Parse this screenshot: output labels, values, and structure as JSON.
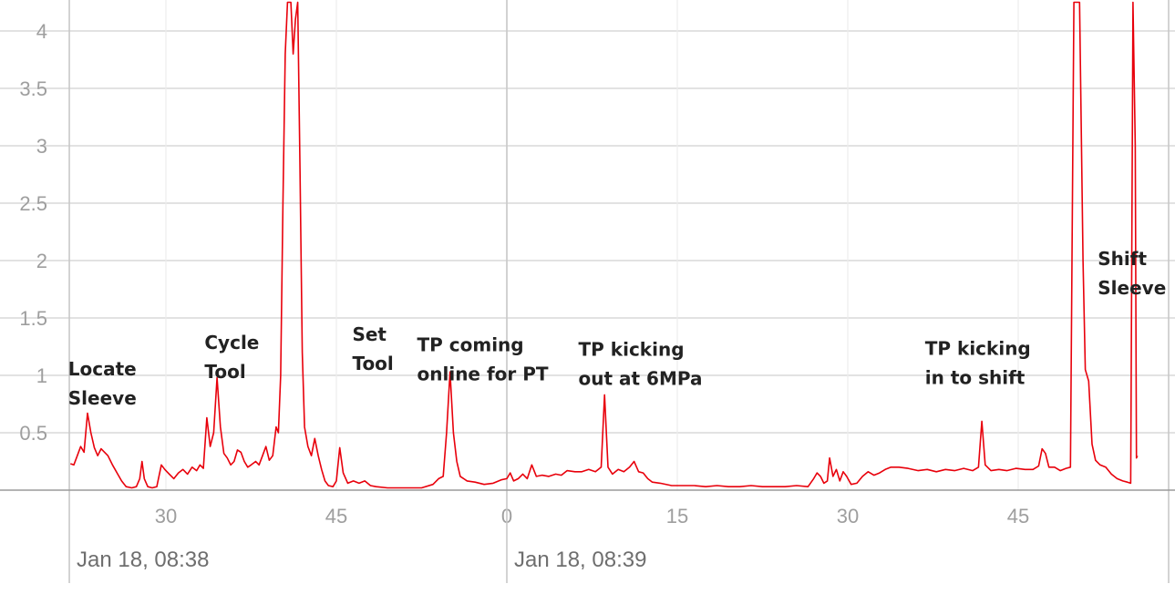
{
  "chart_data": {
    "type": "line",
    "title": "",
    "xlabel": "",
    "ylabel": "",
    "grid": true,
    "ylim": [
      0,
      4.25
    ],
    "xlim": [
      21.5,
      115.5
    ],
    "x_unit": "seconds",
    "y_ticks": [
      "0.5",
      "1",
      "1.5",
      "2",
      "2.5",
      "3",
      "3.5",
      "4"
    ],
    "x_ticks": [
      {
        "x": 30,
        "label": "30"
      },
      {
        "x": 45,
        "label": "45"
      },
      {
        "x": 60,
        "label": "0"
      },
      {
        "x": 75,
        "label": "15"
      },
      {
        "x": 90,
        "label": "30"
      },
      {
        "x": 105,
        "label": "45"
      }
    ],
    "date_labels": [
      {
        "x": 21.5,
        "label": "Jan 18, 08:38"
      },
      {
        "x": 60,
        "label": "Jan 18, 08:39"
      }
    ],
    "series": [
      {
        "color": "#e8000b",
        "points": [
          [
            21.6,
            0.23
          ],
          [
            21.9,
            0.22
          ],
          [
            22.2,
            0.3
          ],
          [
            22.5,
            0.38
          ],
          [
            22.8,
            0.33
          ],
          [
            23.1,
            0.67
          ],
          [
            23.4,
            0.5
          ],
          [
            23.7,
            0.37
          ],
          [
            24.0,
            0.3
          ],
          [
            24.3,
            0.36
          ],
          [
            24.6,
            0.33
          ],
          [
            24.9,
            0.3
          ],
          [
            25.3,
            0.22
          ],
          [
            25.7,
            0.15
          ],
          [
            26.1,
            0.08
          ],
          [
            26.5,
            0.03
          ],
          [
            27.0,
            0.02
          ],
          [
            27.4,
            0.03
          ],
          [
            27.7,
            0.1
          ],
          [
            27.9,
            0.25
          ],
          [
            28.1,
            0.1
          ],
          [
            28.4,
            0.03
          ],
          [
            28.8,
            0.02
          ],
          [
            29.2,
            0.03
          ],
          [
            29.6,
            0.22
          ],
          [
            29.9,
            0.18
          ],
          [
            30.3,
            0.14
          ],
          [
            30.7,
            0.1
          ],
          [
            31.1,
            0.15
          ],
          [
            31.5,
            0.18
          ],
          [
            31.9,
            0.14
          ],
          [
            32.3,
            0.2
          ],
          [
            32.7,
            0.17
          ],
          [
            33.0,
            0.22
          ],
          [
            33.3,
            0.19
          ],
          [
            33.6,
            0.63
          ],
          [
            33.9,
            0.38
          ],
          [
            34.2,
            0.5
          ],
          [
            34.5,
            0.98
          ],
          [
            34.8,
            0.55
          ],
          [
            35.1,
            0.32
          ],
          [
            35.4,
            0.28
          ],
          [
            35.7,
            0.22
          ],
          [
            36.0,
            0.25
          ],
          [
            36.3,
            0.35
          ],
          [
            36.6,
            0.33
          ],
          [
            36.9,
            0.25
          ],
          [
            37.2,
            0.2
          ],
          [
            37.5,
            0.22
          ],
          [
            37.9,
            0.25
          ],
          [
            38.2,
            0.22
          ],
          [
            38.5,
            0.3
          ],
          [
            38.8,
            0.38
          ],
          [
            39.1,
            0.26
          ],
          [
            39.4,
            0.3
          ],
          [
            39.7,
            0.55
          ],
          [
            39.9,
            0.5
          ],
          [
            40.1,
            1.0
          ],
          [
            40.3,
            2.5
          ],
          [
            40.5,
            3.8
          ],
          [
            40.7,
            4.25
          ],
          [
            41.0,
            4.25
          ],
          [
            41.2,
            3.8
          ],
          [
            41.4,
            4.1
          ],
          [
            41.6,
            4.25
          ],
          [
            41.8,
            2.8
          ],
          [
            42.0,
            1.2
          ],
          [
            42.2,
            0.55
          ],
          [
            42.5,
            0.38
          ],
          [
            42.8,
            0.3
          ],
          [
            43.1,
            0.45
          ],
          [
            43.4,
            0.3
          ],
          [
            43.7,
            0.18
          ],
          [
            44.0,
            0.08
          ],
          [
            44.3,
            0.04
          ],
          [
            44.7,
            0.03
          ],
          [
            45.0,
            0.08
          ],
          [
            45.3,
            0.37
          ],
          [
            45.6,
            0.15
          ],
          [
            46.0,
            0.06
          ],
          [
            46.5,
            0.08
          ],
          [
            47.0,
            0.06
          ],
          [
            47.5,
            0.08
          ],
          [
            48.0,
            0.04
          ],
          [
            48.5,
            0.03
          ],
          [
            49.5,
            0.02
          ],
          [
            51.0,
            0.02
          ],
          [
            52.5,
            0.02
          ],
          [
            53.5,
            0.05
          ],
          [
            54.0,
            0.1
          ],
          [
            54.4,
            0.12
          ],
          [
            54.7,
            0.5
          ],
          [
            55.0,
            1.03
          ],
          [
            55.3,
            0.5
          ],
          [
            55.6,
            0.25
          ],
          [
            55.9,
            0.12
          ],
          [
            56.5,
            0.08
          ],
          [
            57.2,
            0.07
          ],
          [
            58.0,
            0.05
          ],
          [
            58.8,
            0.06
          ],
          [
            59.5,
            0.09
          ],
          [
            60.0,
            0.1
          ],
          [
            60.3,
            0.15
          ],
          [
            60.6,
            0.08
          ],
          [
            61.0,
            0.1
          ],
          [
            61.4,
            0.14
          ],
          [
            61.8,
            0.1
          ],
          [
            62.2,
            0.22
          ],
          [
            62.6,
            0.12
          ],
          [
            63.1,
            0.13
          ],
          [
            63.7,
            0.12
          ],
          [
            64.3,
            0.14
          ],
          [
            64.8,
            0.13
          ],
          [
            65.3,
            0.17
          ],
          [
            66.0,
            0.16
          ],
          [
            66.6,
            0.16
          ],
          [
            67.2,
            0.18
          ],
          [
            67.8,
            0.16
          ],
          [
            68.3,
            0.2
          ],
          [
            68.6,
            0.83
          ],
          [
            68.9,
            0.2
          ],
          [
            69.3,
            0.14
          ],
          [
            69.8,
            0.18
          ],
          [
            70.3,
            0.16
          ],
          [
            70.8,
            0.2
          ],
          [
            71.2,
            0.25
          ],
          [
            71.6,
            0.16
          ],
          [
            72.0,
            0.15
          ],
          [
            72.4,
            0.1
          ],
          [
            72.8,
            0.07
          ],
          [
            73.5,
            0.06
          ],
          [
            74.5,
            0.04
          ],
          [
            75.5,
            0.04
          ],
          [
            76.5,
            0.04
          ],
          [
            77.5,
            0.03
          ],
          [
            78.5,
            0.04
          ],
          [
            79.5,
            0.03
          ],
          [
            80.5,
            0.03
          ],
          [
            81.5,
            0.04
          ],
          [
            82.5,
            0.03
          ],
          [
            83.5,
            0.03
          ],
          [
            84.5,
            0.03
          ],
          [
            85.5,
            0.04
          ],
          [
            86.5,
            0.03
          ],
          [
            87.0,
            0.1
          ],
          [
            87.3,
            0.15
          ],
          [
            87.6,
            0.12
          ],
          [
            87.9,
            0.06
          ],
          [
            88.2,
            0.08
          ],
          [
            88.4,
            0.28
          ],
          [
            88.7,
            0.12
          ],
          [
            89.0,
            0.18
          ],
          [
            89.3,
            0.08
          ],
          [
            89.6,
            0.16
          ],
          [
            89.9,
            0.12
          ],
          [
            90.3,
            0.05
          ],
          [
            90.8,
            0.06
          ],
          [
            91.3,
            0.12
          ],
          [
            91.8,
            0.16
          ],
          [
            92.3,
            0.13
          ],
          [
            92.8,
            0.15
          ],
          [
            93.3,
            0.18
          ],
          [
            93.8,
            0.2
          ],
          [
            94.5,
            0.2
          ],
          [
            95.3,
            0.19
          ],
          [
            96.2,
            0.17
          ],
          [
            97.0,
            0.18
          ],
          [
            97.8,
            0.16
          ],
          [
            98.6,
            0.18
          ],
          [
            99.4,
            0.17
          ],
          [
            100.2,
            0.19
          ],
          [
            101.0,
            0.17
          ],
          [
            101.5,
            0.2
          ],
          [
            101.8,
            0.6
          ],
          [
            102.1,
            0.22
          ],
          [
            102.6,
            0.17
          ],
          [
            103.3,
            0.18
          ],
          [
            104.0,
            0.17
          ],
          [
            104.8,
            0.19
          ],
          [
            105.6,
            0.18
          ],
          [
            106.3,
            0.18
          ],
          [
            106.8,
            0.21
          ],
          [
            107.1,
            0.36
          ],
          [
            107.4,
            0.32
          ],
          [
            107.7,
            0.2
          ],
          [
            108.2,
            0.2
          ],
          [
            108.7,
            0.17
          ],
          [
            109.2,
            0.19
          ],
          [
            109.6,
            0.2
          ],
          [
            109.9,
            4.25
          ],
          [
            110.4,
            4.25
          ],
          [
            110.7,
            2.0
          ],
          [
            110.9,
            1.05
          ],
          [
            111.2,
            0.95
          ],
          [
            111.5,
            0.4
          ],
          [
            111.8,
            0.26
          ],
          [
            112.2,
            0.22
          ],
          [
            112.7,
            0.2
          ],
          [
            113.2,
            0.14
          ],
          [
            113.7,
            0.1
          ],
          [
            114.2,
            0.08
          ],
          [
            114.6,
            0.07
          ],
          [
            114.9,
            0.06
          ],
          [
            115.1,
            4.25
          ],
          [
            115.3,
            3.0
          ],
          [
            115.4,
            0.28
          ],
          [
            115.5,
            0.3
          ]
        ]
      }
    ],
    "annotations": [
      {
        "lines": [
          "Locate",
          "Sleeve"
        ],
        "x": 21.4,
        "y": 1.0
      },
      {
        "lines": [
          "Cycle",
          "Tool"
        ],
        "x": 33.4,
        "y": 1.23
      },
      {
        "lines": [
          "Set",
          "Tool"
        ],
        "x": 46.4,
        "y": 1.3
      },
      {
        "lines": [
          "TP coming",
          "online for PT"
        ],
        "x": 52.1,
        "y": 1.21
      },
      {
        "lines": [
          "TP kicking",
          "out at 6MPa"
        ],
        "x": 66.3,
        "y": 1.17
      },
      {
        "lines": [
          "TP kicking",
          "in to shift"
        ],
        "x": 96.8,
        "y": 1.18
      },
      {
        "lines": [
          "Shift",
          "Sleeve"
        ],
        "x": 112.0,
        "y": 1.96
      }
    ]
  }
}
